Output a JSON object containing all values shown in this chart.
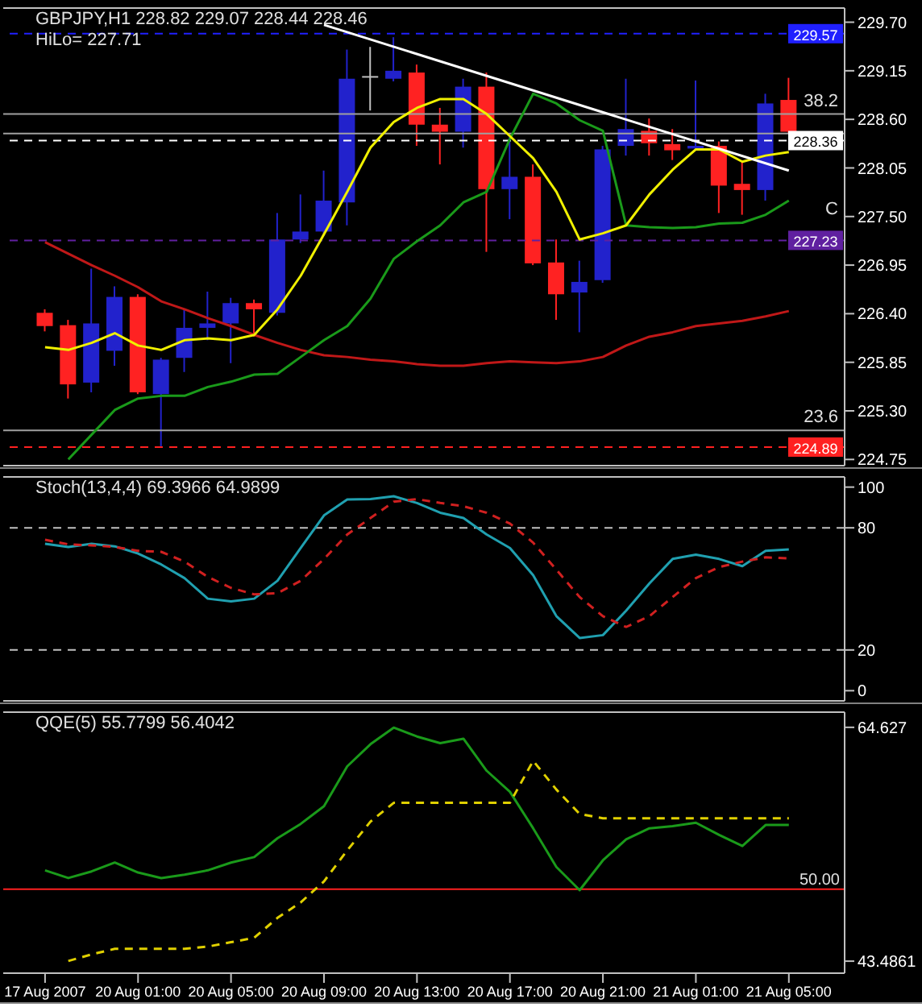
{
  "chart_data": [
    {
      "type": "candlestick",
      "title": "GBPJPY,H1  228.82 229.07 228.44 228.46",
      "subtitle": "HiLo= 227.71",
      "annotations": [
        {
          "text": "38.2",
          "y": 228.66
        },
        {
          "text": "23.6",
          "y": 225.08
        },
        "C"
      ],
      "tick_labels": "y",
      "categories": [
        null,
        null,
        null,
        null,
        null,
        null,
        null,
        null,
        null,
        null,
        null,
        null,
        null,
        null,
        null,
        null,
        null,
        null,
        null,
        null,
        null,
        null,
        null,
        null,
        null,
        null,
        null,
        null,
        null,
        null,
        null,
        null,
        null
      ],
      "ohlc": [
        [
          226.41,
          226.45,
          226.2,
          226.26
        ],
        [
          226.27,
          226.33,
          225.44,
          225.6
        ],
        [
          225.62,
          226.91,
          225.51,
          226.29
        ],
        [
          225.98,
          226.71,
          225.81,
          226.59
        ],
        [
          226.59,
          226.62,
          225.49,
          225.51
        ],
        [
          225.49,
          225.9,
          224.9,
          225.88
        ],
        [
          225.9,
          226.45,
          225.74,
          226.24
        ],
        [
          226.24,
          226.65,
          226.1,
          226.29
        ],
        [
          226.29,
          226.58,
          225.84,
          226.52
        ],
        [
          226.52,
          226.56,
          226.14,
          226.45
        ],
        [
          226.41,
          227.54,
          226.38,
          227.24
        ],
        [
          227.24,
          227.75,
          227.2,
          227.33
        ],
        [
          227.33,
          228.02,
          227.28,
          227.68
        ],
        [
          227.66,
          229.39,
          227.4,
          229.06
        ],
        [
          229.09,
          229.42,
          228.7,
          229.09
        ],
        [
          229.06,
          229.53,
          229.03,
          229.15
        ],
        [
          229.13,
          229.22,
          228.3,
          228.54
        ],
        [
          228.54,
          228.73,
          228.09,
          228.46
        ],
        [
          228.46,
          229.06,
          228.28,
          228.97
        ],
        [
          228.97,
          229.13,
          227.1,
          227.81
        ],
        [
          227.81,
          228.4,
          227.47,
          227.95
        ],
        [
          227.95,
          228.09,
          226.95,
          226.97
        ],
        [
          226.98,
          227.24,
          226.33,
          226.62
        ],
        [
          226.64,
          227.0,
          226.19,
          226.76
        ],
        [
          226.78,
          228.3,
          226.75,
          228.26
        ],
        [
          228.3,
          229.06,
          228.19,
          228.49
        ],
        [
          228.47,
          228.61,
          228.19,
          228.33
        ],
        [
          228.32,
          228.49,
          228.14,
          228.25
        ],
        [
          228.27,
          229.04,
          228.25,
          228.3
        ],
        [
          228.3,
          228.35,
          227.54,
          227.85
        ],
        [
          227.87,
          228.12,
          227.52,
          227.8
        ],
        [
          227.8,
          228.89,
          227.68,
          228.78
        ],
        [
          228.82,
          229.07,
          228.44,
          228.46
        ]
      ],
      "colors": [
        "#ff2222",
        "#ff2222",
        "#2222cc",
        "#2222cc",
        "#ff2222",
        "#2222cc",
        "#2222cc",
        "#2222cc",
        "#2222cc",
        "#ff2222",
        "#2222cc",
        "#2222cc",
        "#2222cc",
        "#2222cc",
        "#c0c0c0",
        "#2222cc",
        "#ff2222",
        "#ff2222",
        "#2222cc",
        "#ff2222",
        "#2222cc",
        "#ff2222",
        "#ff2222",
        "#2222cc",
        "#2222cc",
        "#2222cc",
        "#ff2222",
        "#ff2222",
        "#2222cc",
        "#ff2222",
        "#ff2222",
        "#2222cc",
        "#ff2222"
      ],
      "series": [
        {
          "type": "line",
          "color": "#c01818",
          "values": [
            227.21,
            227.08,
            226.95,
            226.83,
            226.7,
            226.54,
            226.45,
            226.35,
            226.26,
            226.16,
            226.07,
            225.99,
            225.93,
            225.91,
            225.88,
            225.86,
            225.83,
            225.81,
            225.81,
            225.84,
            225.86,
            225.85,
            225.84,
            225.86,
            225.91,
            226.04,
            226.14,
            226.19,
            226.26,
            226.29,
            226.32,
            226.37,
            226.43
          ]
        },
        {
          "type": "line",
          "color": "#1a9a1a",
          "values": [
            null,
            224.75,
            225.03,
            225.31,
            225.44,
            225.47,
            225.47,
            225.57,
            225.63,
            225.71,
            225.72,
            225.91,
            226.1,
            226.26,
            226.57,
            227.02,
            227.22,
            227.4,
            227.66,
            227.78,
            228.38,
            228.89,
            228.78,
            228.59,
            228.47,
            227.4,
            227.38,
            227.37,
            227.38,
            227.42,
            227.43,
            227.52,
            227.68
          ]
        },
        {
          "type": "line",
          "color": "#f0f000",
          "values": [
            226.02,
            225.99,
            226.07,
            226.18,
            226.04,
            225.99,
            226.1,
            226.12,
            226.1,
            226.16,
            226.45,
            226.83,
            227.3,
            227.78,
            228.28,
            228.57,
            228.73,
            228.83,
            228.83,
            228.66,
            228.41,
            228.16,
            227.78,
            227.24,
            227.31,
            227.4,
            227.75,
            228.03,
            228.26,
            228.26,
            228.12,
            228.19,
            228.23
          ]
        },
        {
          "type": "line",
          "color": "#ffffff",
          "values": [
            null,
            null,
            null,
            null,
            null,
            null,
            null,
            null,
            null,
            null,
            null,
            null,
            229.67,
            null,
            null,
            null,
            null,
            null,
            null,
            null,
            null,
            null,
            null,
            null,
            null,
            null,
            null,
            null,
            null,
            null,
            null,
            null,
            228.02
          ]
        }
      ],
      "ylim": [
        224.68,
        229.86
      ],
      "yticks": [
        {
          "value": 229.7,
          "label": "229.70"
        },
        {
          "value": 229.15,
          "label": "229.15"
        },
        {
          "value": 228.6,
          "label": "228.60"
        },
        {
          "value": 228.05,
          "label": "228.05"
        },
        {
          "value": 227.5,
          "label": "227.50"
        },
        {
          "value": 226.95,
          "label": "226.95"
        },
        {
          "value": 226.4,
          "label": "226.40"
        },
        {
          "value": 225.85,
          "label": "225.85"
        },
        {
          "value": 225.3,
          "label": "225.30"
        },
        {
          "value": 224.75,
          "label": "224.75"
        }
      ],
      "ref_lines": [
        {
          "axis": "y",
          "value": 229.57,
          "label": "229.57",
          "color": "#2020ff",
          "line_style": "dashed"
        },
        {
          "axis": "y",
          "value": 228.66,
          "color": "#a0a0a0",
          "line_style": "solid"
        },
        {
          "axis": "y",
          "value": 228.44,
          "color": "#a0a0a0",
          "line_style": "solid"
        },
        {
          "axis": "y",
          "value": 228.36,
          "label": "228.36",
          "color": "#ffffff",
          "line_style": "dashed"
        },
        {
          "axis": "y",
          "value": 227.23,
          "label": "227.23",
          "color": "#6020a0",
          "line_style": "dashed"
        },
        {
          "axis": "y",
          "value": 225.08,
          "color": "#a0a0a0",
          "line_style": "solid"
        },
        {
          "axis": "y",
          "value": 224.89,
          "label": "224.89",
          "color": "#ff2020",
          "line_style": "dashed"
        }
      ]
    },
    {
      "type": "line",
      "title": "Stoch(13,4,4) 69.3966 64.9899",
      "tick_labels": "y",
      "categories": [
        null,
        null,
        null,
        null,
        null,
        null,
        null,
        null,
        null,
        null,
        null,
        null,
        null,
        null,
        null,
        null,
        null,
        null,
        null,
        null,
        null,
        null,
        null,
        null,
        null,
        null,
        null,
        null,
        null,
        null,
        null,
        null,
        null
      ],
      "series": [
        {
          "color": "#20a0b0",
          "line_style": "solid",
          "values": [
            72.2,
            70.6,
            72.2,
            70.9,
            67.4,
            62.0,
            55.3,
            45.2,
            43.9,
            45.2,
            54.0,
            70.1,
            86.1,
            93.9,
            94.1,
            95.5,
            92.2,
            87.4,
            84.8,
            76.7,
            70.1,
            56.7,
            36.6,
            25.9,
            27.3,
            39.3,
            52.7,
            64.7,
            66.8,
            64.7,
            61.2,
            68.7,
            69.4
          ]
        },
        {
          "color": "#d02020",
          "line_style": "dashed",
          "values": [
            74.1,
            71.9,
            71.4,
            70.6,
            68.7,
            68.2,
            63.4,
            55.9,
            50.5,
            47.3,
            47.9,
            54.0,
            64.7,
            76.7,
            84.8,
            92.8,
            94.1,
            92.2,
            90.6,
            87.4,
            82.1,
            72.7,
            59.4,
            46.0,
            36.6,
            31.3,
            36.6,
            46.0,
            55.3,
            60.7,
            63.4,
            65.5,
            65.0
          ]
        }
      ],
      "ylim": [
        -5,
        105
      ],
      "yticks": [
        100,
        80,
        20,
        0
      ],
      "ref_lines": [
        {
          "axis": "y",
          "value": 80,
          "color": "#c0c0c0",
          "line_style": "dashed"
        },
        {
          "axis": "y",
          "value": 20,
          "color": "#c0c0c0",
          "line_style": "dashed"
        }
      ]
    },
    {
      "type": "line",
      "title": "QQE(5) 55.7799 56.4042",
      "categories": [
        "17 Aug 2007",
        null,
        null,
        null,
        "20 Aug 01:00",
        null,
        null,
        null,
        "20 Aug 05:00",
        null,
        null,
        null,
        "20 Aug 09:00",
        null,
        null,
        null,
        "20 Aug 13:00",
        null,
        null,
        null,
        "20 Aug 17:00",
        null,
        null,
        null,
        "20 Aug 21:00",
        null,
        null,
        null,
        "21 Aug 01:00",
        null,
        null,
        null,
        "21 Aug 05:00"
      ],
      "series": [
        {
          "color": "#1a9a1a",
          "line_style": "solid",
          "values": [
            51.7,
            51.0,
            51.6,
            52.4,
            51.5,
            51.0,
            51.3,
            51.7,
            52.4,
            52.9,
            54.6,
            55.9,
            57.5,
            61.1,
            63.1,
            64.6,
            63.8,
            63.2,
            63.6,
            60.7,
            58.8,
            55.5,
            52.0,
            49.9,
            52.6,
            54.5,
            55.5,
            55.7,
            56.0,
            54.9,
            53.9,
            55.8,
            55.8
          ]
        },
        {
          "color": "#e0d000",
          "line_style": "dashed",
          "values": [
            null,
            43.5,
            44.1,
            44.6,
            44.6,
            44.6,
            44.6,
            44.8,
            45.2,
            45.6,
            47.4,
            48.8,
            50.7,
            53.5,
            56.1,
            57.8,
            57.8,
            57.8,
            57.8,
            57.8,
            57.8,
            61.6,
            59.0,
            56.8,
            56.4,
            56.4,
            56.4,
            56.4,
            56.4,
            56.4,
            56.4,
            56.4,
            56.4
          ]
        }
      ],
      "ylim": [
        42.4,
        66
      ],
      "yticks": [
        64.627,
        43.4861
      ],
      "ref_lines": [
        {
          "axis": "y",
          "value": 50,
          "label": "50.00",
          "color": "#ff2020",
          "line_style": "solid"
        }
      ]
    }
  ]
}
